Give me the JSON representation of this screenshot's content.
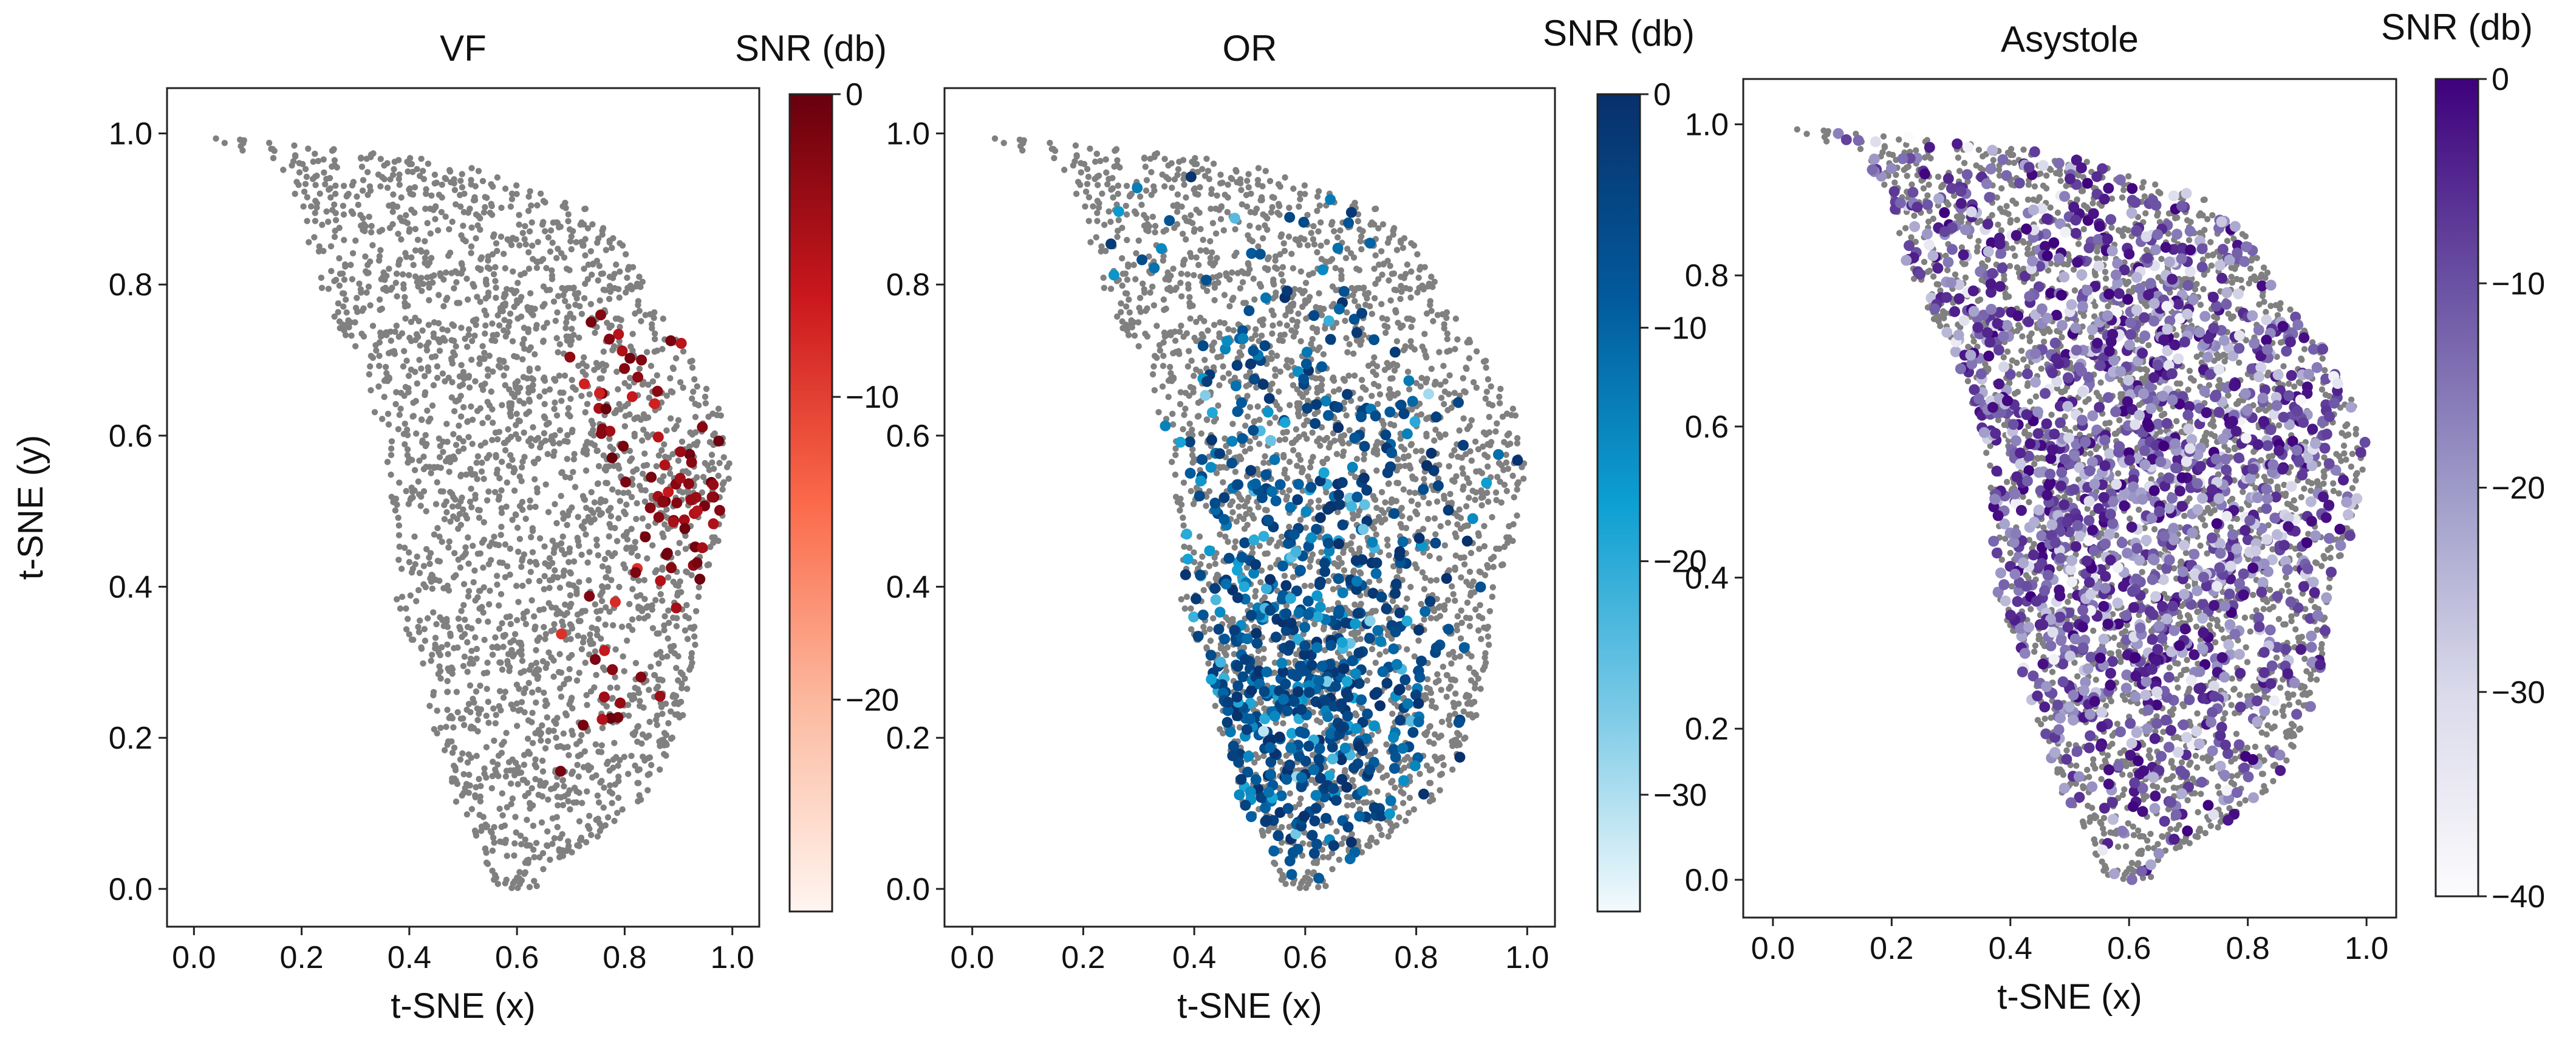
{
  "figure": {
    "layout": "three panels side by side, each with a vertical colorbar on the right"
  },
  "point_color_unlabeled": "#808080",
  "chart_data": [
    {
      "type": "scatter",
      "title": "VF",
      "xlabel": "t-SNE (x)",
      "ylabel": "t-SNE (y)",
      "xlim": [
        -0.05,
        1.05
      ],
      "ylim": [
        -0.05,
        1.06
      ],
      "xticks": [
        "0.0",
        "0.2",
        "0.4",
        "0.6",
        "0.8",
        "1.0"
      ],
      "yticks": [
        "0.0",
        "0.2",
        "0.4",
        "0.6",
        "0.8",
        "1.0"
      ],
      "colorbar": {
        "label": "SNR (db)",
        "colormap": "Reds",
        "range": [
          -27,
          0
        ],
        "ticks": [
          "0",
          "−10",
          "−20"
        ],
        "tick_values": [
          0,
          -10,
          -20
        ],
        "colors": [
          "#fff5f0",
          "#fcbba1",
          "#fb6a4a",
          "#cb181d",
          "#67000d"
        ]
      },
      "highlight_count": 90,
      "highlight_clusters": [
        {
          "cx": 0.92,
          "cy": 0.5,
          "spread": 0.05,
          "weight": 0.45
        },
        {
          "cx": 0.78,
          "cy": 0.68,
          "spread": 0.05,
          "weight": 0.35
        },
        {
          "cx": 0.78,
          "cy": 0.28,
          "spread": 0.07,
          "weight": 0.2
        }
      ],
      "snr_bias": 0.15
    },
    {
      "type": "scatter",
      "title": "OR",
      "xlabel": "t-SNE (x)",
      "ylabel": "",
      "xlim": [
        -0.05,
        1.05
      ],
      "ylim": [
        -0.05,
        1.06
      ],
      "xticks": [
        "0.0",
        "0.2",
        "0.4",
        "0.6",
        "0.8",
        "1.0"
      ],
      "yticks": [
        "0.0",
        "0.2",
        "0.4",
        "0.6",
        "0.8",
        "1.0"
      ],
      "colorbar": {
        "label": "SNR (db)",
        "colormap": "Blues-cyan",
        "range": [
          -35,
          0
        ],
        "ticks": [
          "0",
          "−10",
          "−20",
          "−30"
        ],
        "tick_values": [
          0,
          -10,
          -20,
          -30
        ],
        "colors": [
          "#f4fafd",
          "#79c9e6",
          "#0d9fd2",
          "#025a9c",
          "#08306b"
        ]
      },
      "highlight_count": 700,
      "highlight_clusters": [
        {
          "cx": 0.58,
          "cy": 0.22,
          "spread": 0.12,
          "weight": 0.55
        },
        {
          "cx": 0.6,
          "cy": 0.45,
          "spread": 0.15,
          "weight": 0.3
        },
        {
          "cx": 0.55,
          "cy": 0.7,
          "spread": 0.18,
          "weight": 0.15
        }
      ],
      "snr_bias": 0.3
    },
    {
      "type": "scatter",
      "title": "Asystole",
      "xlabel": "t-SNE (x)",
      "ylabel": "",
      "xlim": [
        -0.05,
        1.05
      ],
      "ylim": [
        -0.05,
        1.06
      ],
      "xticks": [
        "0.0",
        "0.2",
        "0.4",
        "0.6",
        "0.8",
        "1.0"
      ],
      "yticks": [
        "0.0",
        "0.2",
        "0.4",
        "0.6",
        "0.8",
        "1.0"
      ],
      "colorbar": {
        "label": "SNR (db)",
        "colormap": "Purples",
        "range": [
          -40,
          0
        ],
        "ticks": [
          "0",
          "−10",
          "−20",
          "−30",
          "−40"
        ],
        "tick_values": [
          0,
          -10,
          -20,
          -30,
          -40
        ],
        "colors": [
          "#fcfbfd",
          "#dadaeb",
          "#9e9ac8",
          "#6a51a3",
          "#3f007d"
        ]
      },
      "highlight_count": 1700,
      "highlight_clusters": [
        {
          "cx": 0.55,
          "cy": 0.55,
          "spread": 0.35,
          "weight": 1.0
        }
      ],
      "snr_bias": 0.5
    }
  ]
}
